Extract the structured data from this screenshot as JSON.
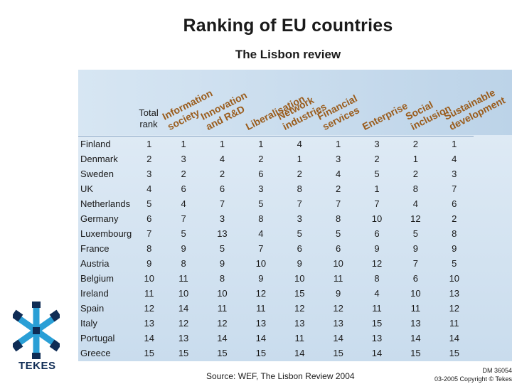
{
  "slide": {
    "title": "Ranking of EU countries",
    "subtitle": "The Lisbon review",
    "total_rank_label": "Total rank"
  },
  "columns": [
    {
      "label": "Information society"
    },
    {
      "label": "Innovation and R&D"
    },
    {
      "label": "Liberalisation"
    },
    {
      "label": "Network industries"
    },
    {
      "label": "Financial services"
    },
    {
      "label": "Enterprise"
    },
    {
      "label": "Social inclusion"
    },
    {
      "label": "Sustainable development"
    }
  ],
  "column_label_lines": [
    [
      "Information",
      "society"
    ],
    [
      "Innovation",
      "and R&D"
    ],
    [
      "Liberalisation"
    ],
    [
      "Network",
      "industries"
    ],
    [
      "Financial",
      "services"
    ],
    [
      "Enterprise"
    ],
    [
      "Social",
      "inclusion"
    ],
    [
      "Sustainable",
      "development"
    ]
  ],
  "rows": [
    {
      "country": "Finland",
      "total": "1",
      "scores": [
        "1",
        "1",
        "1",
        "4",
        "1",
        "3",
        "2",
        "1"
      ]
    },
    {
      "country": "Denmark",
      "total": "2",
      "scores": [
        "3",
        "4",
        "2",
        "1",
        "3",
        "2",
        "1",
        "4"
      ]
    },
    {
      "country": "Sweden",
      "total": "3",
      "scores": [
        "2",
        "2",
        "6",
        "2",
        "4",
        "5",
        "2",
        "3"
      ]
    },
    {
      "country": "UK",
      "total": "4",
      "scores": [
        "6",
        "6",
        "3",
        "8",
        "2",
        "1",
        "8",
        "7"
      ]
    },
    {
      "country": "Netherlands",
      "total": "5",
      "scores": [
        "4",
        "7",
        "5",
        "7",
        "7",
        "7",
        "4",
        "6"
      ]
    },
    {
      "country": "Germany",
      "total": "6",
      "scores": [
        "7",
        "3",
        "8",
        "3",
        "8",
        "10",
        "12",
        "2"
      ]
    },
    {
      "country": "Luxembourg",
      "total": "7",
      "scores": [
        "5",
        "13",
        "4",
        "5",
        "5",
        "6",
        "5",
        "8"
      ]
    },
    {
      "country": "France",
      "total": "8",
      "scores": [
        "9",
        "5",
        "7",
        "6",
        "6",
        "9",
        "9",
        "9"
      ]
    },
    {
      "country": "Austria",
      "total": "9",
      "scores": [
        "8",
        "9",
        "10",
        "9",
        "10",
        "12",
        "7",
        "5"
      ]
    },
    {
      "country": "Belgium",
      "total": "10",
      "scores": [
        "11",
        "8",
        "9",
        "10",
        "11",
        "8",
        "6",
        "10"
      ]
    },
    {
      "country": "Ireland",
      "total": "11",
      "scores": [
        "10",
        "10",
        "12",
        "15",
        "9",
        "4",
        "10",
        "13"
      ]
    },
    {
      "country": "Spain",
      "total": "12",
      "scores": [
        "14",
        "11",
        "11",
        "12",
        "12",
        "11",
        "11",
        "12"
      ]
    },
    {
      "country": "Italy",
      "total": "13",
      "scores": [
        "12",
        "12",
        "13",
        "13",
        "13",
        "15",
        "13",
        "11"
      ]
    },
    {
      "country": "Portugal",
      "total": "14",
      "scores": [
        "13",
        "14",
        "14",
        "11",
        "14",
        "13",
        "14",
        "14"
      ]
    },
    {
      "country": "Greece",
      "total": "15",
      "scores": [
        "15",
        "15",
        "15",
        "14",
        "15",
        "14",
        "15",
        "15"
      ]
    }
  ],
  "footer": {
    "source": "Source: WEF, The Lisbon Review 2004",
    "doc_id": "DM 36054",
    "copyright": "03-2005 Copyright © Tekes",
    "logo_text": "TEKES"
  },
  "colors": {
    "header_text": "#9a5c1c",
    "logo": "#2a9fd6",
    "logo_dark": "#0f2c55"
  }
}
